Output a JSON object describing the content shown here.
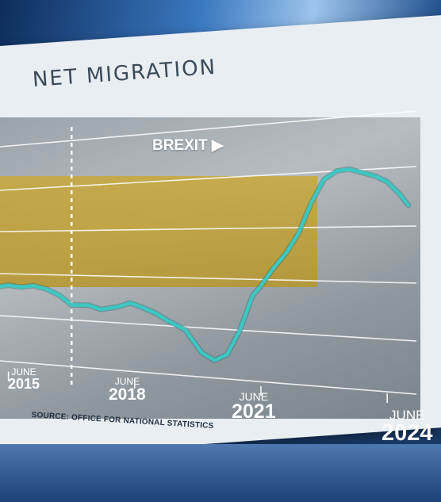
{
  "title": "NET MIGRATION",
  "source": "SOURCE: OFFICE FOR NATIONAL STATISTICS",
  "annotation": {
    "label": "BREXIT",
    "x": 2016.5
  },
  "x_ticks": [
    {
      "month": "JUNE",
      "year": "2015"
    },
    {
      "month": "JUNE",
      "year": "2018"
    },
    {
      "month": "JUNE",
      "year": "2021"
    },
    {
      "month": "JUNE",
      "year": "2024"
    }
  ],
  "colors": {
    "line": "#3ec7c0",
    "grid": "#ffffff",
    "panel": "#a3aab0",
    "frame": "#e9eef3"
  },
  "chart_data": {
    "type": "line",
    "title": "NET MIGRATION",
    "xlabel": "",
    "ylabel": "",
    "xlim": [
      2014.8,
      2024.6
    ],
    "ylim": [
      0,
      1000
    ],
    "x_tick_values": [
      2015,
      2018,
      2021,
      2024
    ],
    "grid": true,
    "series": [
      {
        "x": [
          2014.8,
          2015.0,
          2015.3,
          2015.6,
          2015.9,
          2016.2,
          2016.5,
          2016.9,
          2017.2,
          2017.6,
          2017.9,
          2018.2,
          2018.5,
          2018.8,
          2019.2,
          2019.6,
          2019.9,
          2020.2,
          2020.5,
          2020.8,
          2021.0,
          2021.3,
          2021.6,
          2021.9,
          2022.2,
          2022.5,
          2022.8,
          2023.1,
          2023.4,
          2023.7,
          2024.0,
          2024.3,
          2024.5
        ],
        "y": [
          330,
          336,
          332,
          340,
          330,
          310,
          275,
          278,
          264,
          278,
          295,
          280,
          262,
          235,
          205,
          120,
          95,
          120,
          215,
          350,
          390,
          460,
          520,
          600,
          720,
          810,
          845,
          855,
          845,
          835,
          815,
          770,
          730
        ]
      }
    ]
  }
}
